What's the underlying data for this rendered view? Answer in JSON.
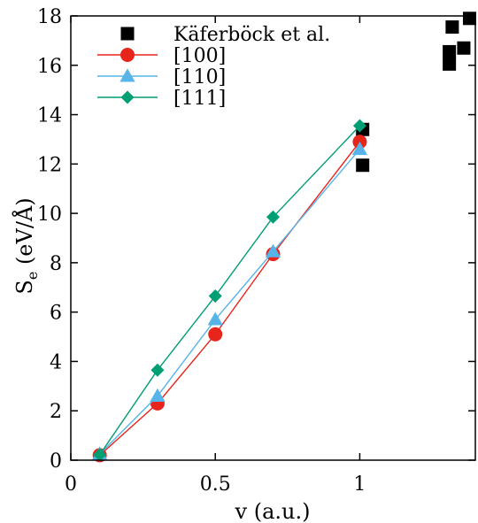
{
  "chart_data": {
    "type": "scatter",
    "xlabel": "v (a.u.)",
    "ylabel": "S",
    "ylabel_sub": "e",
    "ylabel_unit": " (eV/Å)",
    "xlim": [
      0,
      1.4
    ],
    "ylim": [
      0,
      18
    ],
    "x_ticks": [
      0,
      0.5,
      1
    ],
    "x_tick_labels": [
      "0",
      "0.5",
      "1"
    ],
    "y_ticks": [
      0,
      2,
      4,
      6,
      8,
      10,
      12,
      14,
      16,
      18
    ],
    "y_tick_labels": [
      "0",
      "2",
      "4",
      "6",
      "8",
      "10",
      "12",
      "14",
      "16",
      "18"
    ],
    "grid": false,
    "legend_position": "top-left",
    "series": [
      {
        "name": "Käferböck et al.",
        "color": "#000000",
        "marker": "square",
        "line": false,
        "points": [
          {
            "x": 1.01,
            "y": 11.95
          },
          {
            "x": 1.01,
            "y": 13.4
          },
          {
            "x": 1.31,
            "y": 16.05
          },
          {
            "x": 1.31,
            "y": 16.55
          },
          {
            "x": 1.32,
            "y": 17.55
          },
          {
            "x": 1.36,
            "y": 16.7
          },
          {
            "x": 1.38,
            "y": 17.9
          }
        ]
      },
      {
        "name": "[100]",
        "color": "#e8251b",
        "marker": "circle",
        "line": true,
        "points": [
          {
            "x": 0.1,
            "y": 0.2
          },
          {
            "x": 0.3,
            "y": 2.3
          },
          {
            "x": 0.5,
            "y": 5.1
          },
          {
            "x": 0.7,
            "y": 8.35
          },
          {
            "x": 1.0,
            "y": 12.9
          }
        ]
      },
      {
        "name": "[110]",
        "color": "#56b4e9",
        "marker": "triangle",
        "line": true,
        "points": [
          {
            "x": 0.1,
            "y": 0.25
          },
          {
            "x": 0.3,
            "y": 2.6
          },
          {
            "x": 0.5,
            "y": 5.7
          },
          {
            "x": 0.7,
            "y": 8.45
          },
          {
            "x": 1.0,
            "y": 12.6
          }
        ]
      },
      {
        "name": "[111]",
        "color": "#009e73",
        "marker": "diamond",
        "line": true,
        "points": [
          {
            "x": 0.1,
            "y": 0.22
          },
          {
            "x": 0.3,
            "y": 3.65
          },
          {
            "x": 0.5,
            "y": 6.65
          },
          {
            "x": 0.7,
            "y": 9.85
          },
          {
            "x": 1.0,
            "y": 13.55
          }
        ]
      }
    ]
  }
}
